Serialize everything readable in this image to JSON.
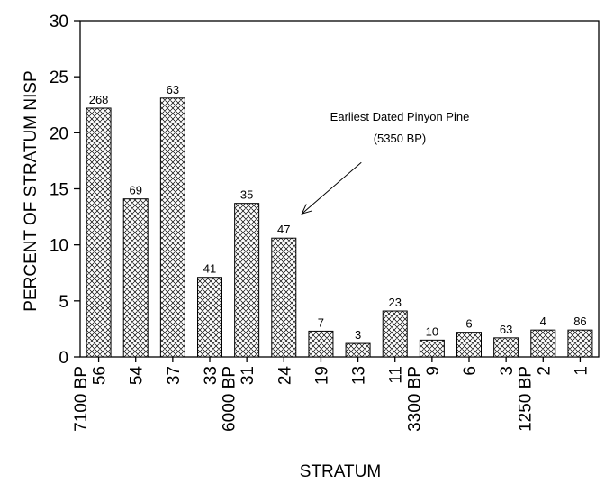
{
  "chart_data": {
    "type": "bar",
    "categories": [
      "56",
      "54",
      "37",
      "33",
      "31",
      "24",
      "19",
      "13",
      "11",
      "9",
      "6",
      "3",
      "2",
      "1"
    ],
    "values": [
      22.2,
      14.1,
      23.1,
      7.1,
      13.7,
      10.6,
      2.3,
      1.2,
      4.1,
      1.5,
      2.2,
      1.7,
      2.4,
      2.4
    ],
    "bar_labels": [
      "268",
      "69",
      "63",
      "41",
      "35",
      "47",
      "7",
      "3",
      "23",
      "10",
      "6",
      "63",
      "4",
      "86"
    ],
    "date_labels": [
      {
        "category": "56",
        "text": "7100 BP"
      },
      {
        "category": "31",
        "text": "6000 BP"
      },
      {
        "category": "9",
        "text": "3300 BP"
      },
      {
        "category": "2",
        "text": "1250 BP"
      }
    ],
    "xlabel": "STRATUM",
    "ylabel": "PERCENT OF STRATUM NISP",
    "ylim": [
      0,
      30
    ],
    "yticks": [
      0,
      5,
      10,
      15,
      20,
      25,
      30
    ],
    "annotation": {
      "line1": "Earliest Dated Pinyon Pine",
      "line2": "(5350 BP)",
      "points_to_category": "24"
    },
    "bar_fill": "crosshatch",
    "bar_color": "#000000",
    "grid": false
  }
}
